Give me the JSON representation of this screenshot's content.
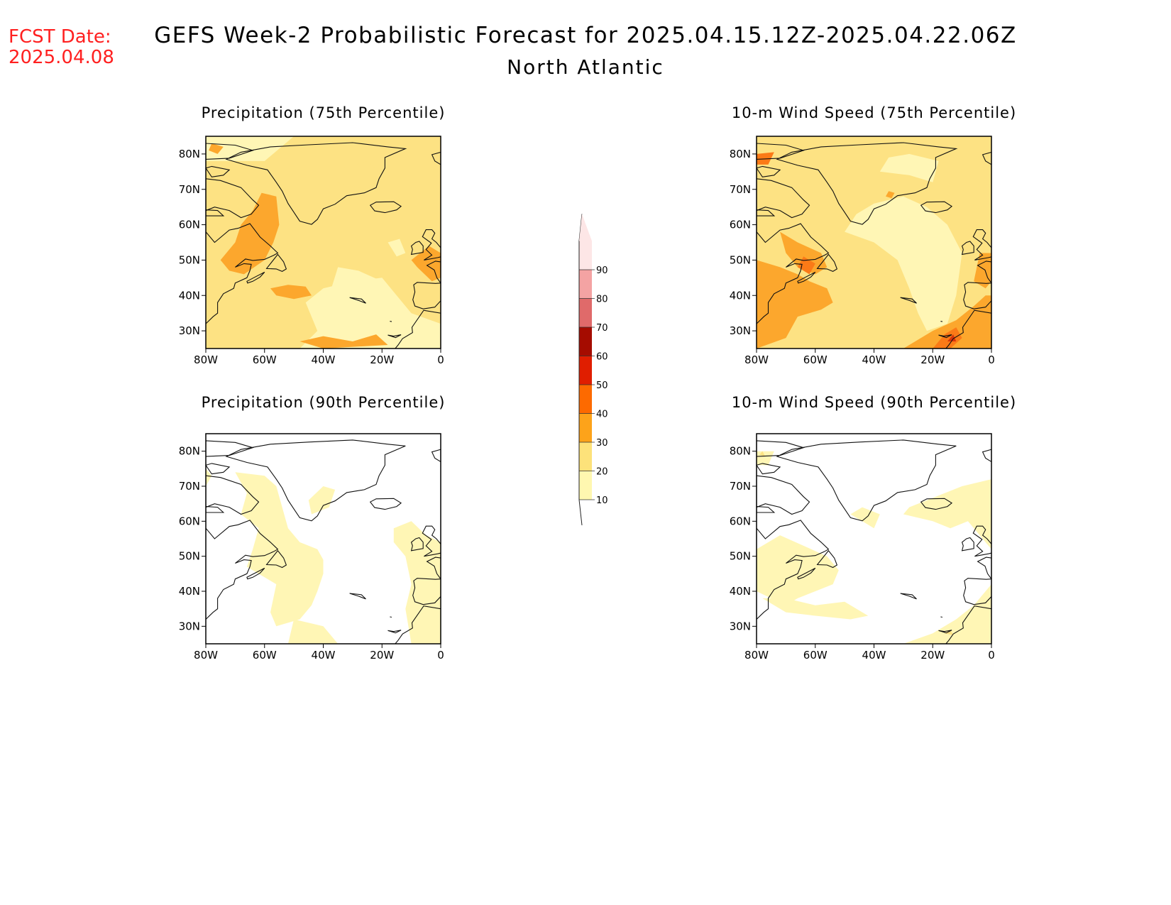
{
  "header": {
    "fcst_label": "FCST Date:",
    "fcst_date": "2025.04.08",
    "title": "GEFS Week-2 Probabilistic Forecast for 2025.04.15.12Z-2025.04.22.06Z",
    "subtitle": "North Atlantic"
  },
  "axes": {
    "lat_ticks": [
      "80N",
      "70N",
      "60N",
      "50N",
      "40N",
      "30N"
    ],
    "lon_ticks": [
      "80W",
      "60W",
      "40W",
      "20W",
      "0"
    ],
    "lat_range": [
      25,
      85
    ],
    "lon_range": [
      -80,
      0
    ]
  },
  "panels": [
    {
      "title": "Precipitation (75th Percentile)",
      "variable": "precipitation",
      "percentile": 75
    },
    {
      "title": "10-m Wind Speed (75th Percentile)",
      "variable": "wind_speed",
      "percentile": 75
    },
    {
      "title": "Precipitation (90th Percentile)",
      "variable": "precipitation",
      "percentile": 90
    },
    {
      "title": "10-m Wind Speed (90th Percentile)",
      "variable": "wind_speed",
      "percentile": 90
    }
  ],
  "colorbar": {
    "levels": [
      "10",
      "20",
      "30",
      "40",
      "50",
      "60",
      "70",
      "80",
      "90"
    ],
    "colors": [
      "#fff7b0",
      "#fde27a",
      "#fda31a",
      "#fd6a00",
      "#e01e00",
      "#a50c00",
      "#e06a6a",
      "#f4a3a3",
      "#fde6e6"
    ]
  },
  "map_colors": {
    "c10": "#fff6b5",
    "c20": "#fde283",
    "c30": "#fca72d",
    "c40": "#fb7a17",
    "c50": "#d9340a",
    "c60": "#a7190a"
  }
}
